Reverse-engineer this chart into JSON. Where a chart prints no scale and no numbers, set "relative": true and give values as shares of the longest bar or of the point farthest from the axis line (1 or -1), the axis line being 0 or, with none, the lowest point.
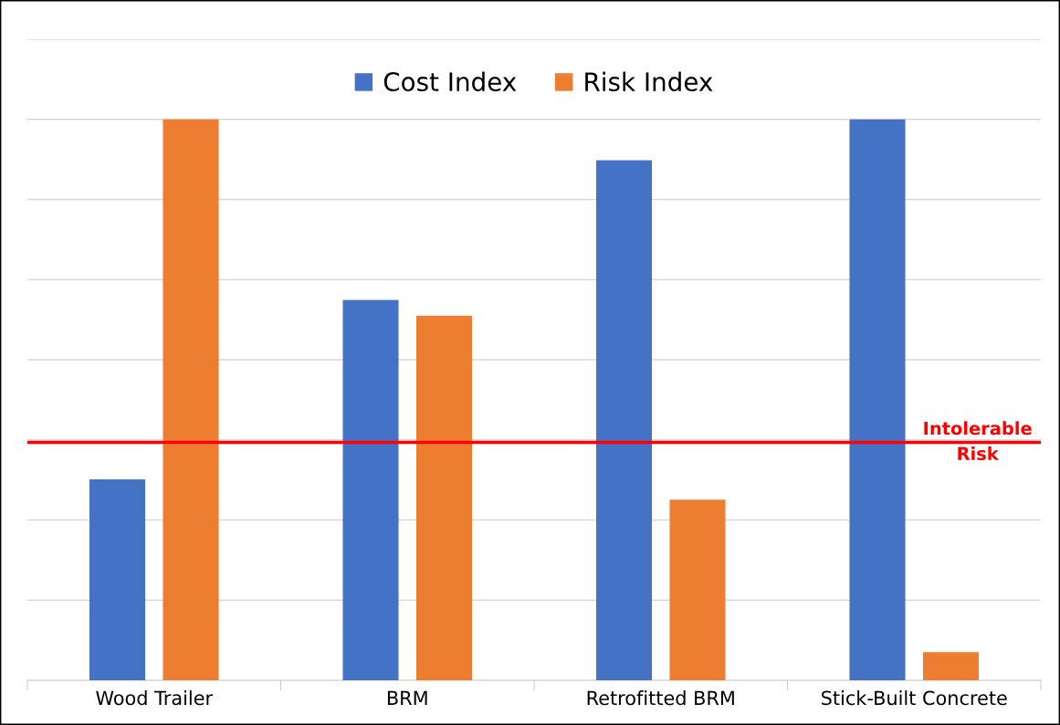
{
  "chart_data": {
    "type": "bar",
    "relative": true,
    "categories": [
      "Wood Trailer",
      "BRM",
      "Retrofitted BRM",
      "Stick-Built Concrete"
    ],
    "series": [
      {
        "name": "Cost Index",
        "color": "#4472c4",
        "values": [
          0.358,
          0.678,
          0.927,
          1.0
        ]
      },
      {
        "name": "Risk Index",
        "color": "#ed7d31",
        "values": [
          1.0,
          0.65,
          0.322,
          0.05
        ]
      }
    ],
    "ref_lines": [
      {
        "axis": "y",
        "value": 0.424,
        "label": "Intolerable\nRisk",
        "color": "#ff0000"
      }
    ],
    "grid": "y",
    "legend": "top"
  }
}
